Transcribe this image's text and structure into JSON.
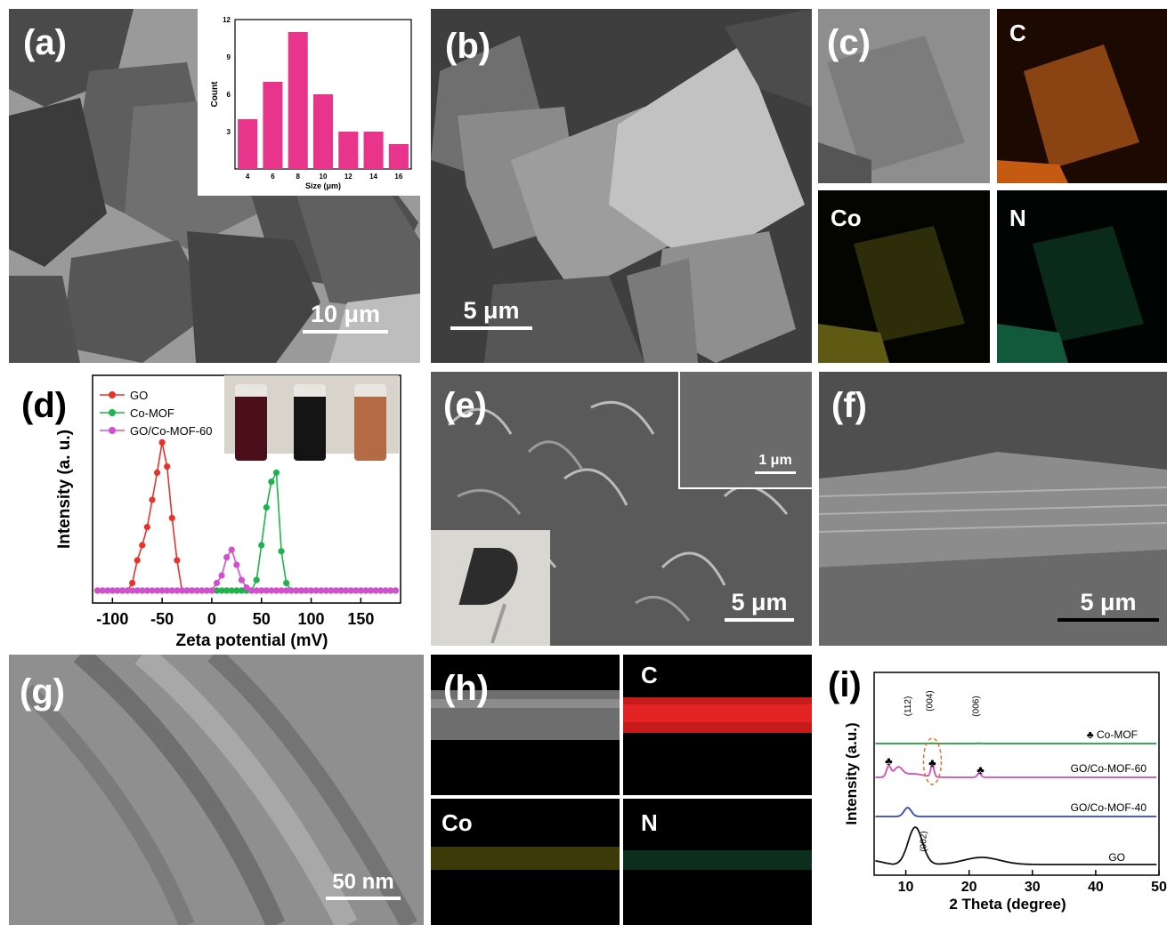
{
  "panel_a": {
    "label": "(a)",
    "scale_bar": "10 μm",
    "inset_chart": {
      "type": "bar",
      "x": [
        4,
        6,
        8,
        10,
        12,
        14,
        16
      ],
      "values": [
        4,
        7,
        11,
        6,
        3,
        3,
        2
      ],
      "xlabel": "Size (μm)",
      "ylabel": "Count",
      "xlim": [
        3,
        17
      ],
      "ylim": [
        0,
        12
      ],
      "x_ticks": [
        "4",
        "6",
        "8",
        "10",
        "12",
        "14",
        "16"
      ],
      "y_ticks": [
        "0",
        "3",
        "6",
        "9",
        "12"
      ],
      "bar_color": "#e8348a"
    }
  },
  "panel_b": {
    "label": "(b)",
    "scale_bar": "5 μm"
  },
  "panel_c": {
    "label": "(c)",
    "maps": [
      "C",
      "Co",
      "N"
    ]
  },
  "panel_d": {
    "label": "(d)",
    "chart_data": {
      "type": "line",
      "xlabel": "Zeta potential (mV)",
      "ylabel": "Intensity (a. u.)",
      "xlim": [
        -120,
        190
      ],
      "x_ticks": [
        "-100",
        "-50",
        "0",
        "50",
        "100",
        "150"
      ],
      "legend_position": "top-left",
      "series": [
        {
          "name": "GO",
          "color": "#e8332a",
          "x": [
            -90,
            -80,
            -75,
            -70,
            -65,
            -60,
            -55,
            -50,
            -45,
            -40,
            -35,
            -30
          ],
          "y": [
            0,
            0.05,
            0.2,
            0.3,
            0.42,
            0.6,
            0.78,
            0.98,
            0.82,
            0.48,
            0.2,
            0
          ]
        },
        {
          "name": "Co-MOF",
          "color": "#1db34d",
          "x": [
            40,
            45,
            50,
            55,
            60,
            65,
            70,
            75,
            80
          ],
          "y": [
            0,
            0.07,
            0.3,
            0.55,
            0.72,
            0.78,
            0.26,
            0.05,
            0
          ]
        },
        {
          "name": "GO/Co-MOF-60",
          "color": "#d24fd0",
          "x": [
            0,
            5,
            10,
            15,
            20,
            25,
            30,
            35,
            40
          ],
          "y": [
            0,
            0.05,
            0.1,
            0.22,
            0.27,
            0.17,
            0.07,
            0.02,
            0
          ]
        }
      ]
    }
  },
  "panel_e": {
    "label": "(e)",
    "inset_scale_bar": "1 μm",
    "scale_bar": "5 μm"
  },
  "panel_f": {
    "label": "(f)",
    "scale_bar": "5 μm"
  },
  "panel_g": {
    "label": "(g)",
    "scale_bar": "50 nm"
  },
  "panel_h": {
    "label": "(h)",
    "maps": [
      "C",
      "Co",
      "N"
    ]
  },
  "panel_i": {
    "label": "(i)",
    "chart_data": {
      "type": "line",
      "xlabel": "2 Theta (degree)",
      "ylabel": "Intensity (a.u.)",
      "xlim": [
        5,
        50
      ],
      "x_ticks": [
        "10",
        "20",
        "30",
        "40",
        "50"
      ],
      "peak_labels": [
        "(112)",
        "(004)",
        "(006)",
        "(002)"
      ],
      "series": [
        {
          "name": "♣ Co-MOF",
          "color": "#1e9e3c"
        },
        {
          "name": "GO/Co-MOF-60",
          "color": "#d04fb8"
        },
        {
          "name": "GO/Co-MOF-40",
          "color": "#3346c8"
        },
        {
          "name": "GO",
          "color": "#111111"
        }
      ],
      "markers": [
        "♣",
        "♣",
        "♣"
      ]
    }
  }
}
